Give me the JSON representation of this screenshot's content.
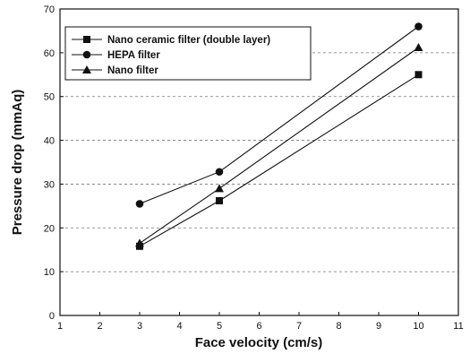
{
  "chart_data": {
    "type": "line",
    "xlabel": "Face velocity (cm/s)",
    "ylabel": "Pressure drop (mmAq)",
    "xlim": [
      1,
      11
    ],
    "ylim": [
      0,
      70
    ],
    "x_ticks": [
      "1",
      "2",
      "3",
      "4",
      "5",
      "6",
      "7",
      "8",
      "9",
      "10",
      "11"
    ],
    "y_ticks": [
      "0",
      "10",
      "20",
      "30",
      "40",
      "50",
      "60",
      "70"
    ],
    "grid": "horizontal-dashed",
    "legend_position": "top-left",
    "series": [
      {
        "name": "Nano ceramic filter (double layer)",
        "marker": "square",
        "points": [
          {
            "x": 3,
            "y": 15.8
          },
          {
            "x": 5,
            "y": 26.2
          },
          {
            "x": 10,
            "y": 55
          }
        ]
      },
      {
        "name": "HEPA filter",
        "marker": "circle",
        "points": [
          {
            "x": 3,
            "y": 25.5
          },
          {
            "x": 5,
            "y": 32.8
          },
          {
            "x": 10,
            "y": 66
          }
        ]
      },
      {
        "name": "Nano filter",
        "marker": "triangle",
        "points": [
          {
            "x": 3,
            "y": 16.5
          },
          {
            "x": 5,
            "y": 29
          },
          {
            "x": 10,
            "y": 61.2
          }
        ]
      }
    ]
  }
}
